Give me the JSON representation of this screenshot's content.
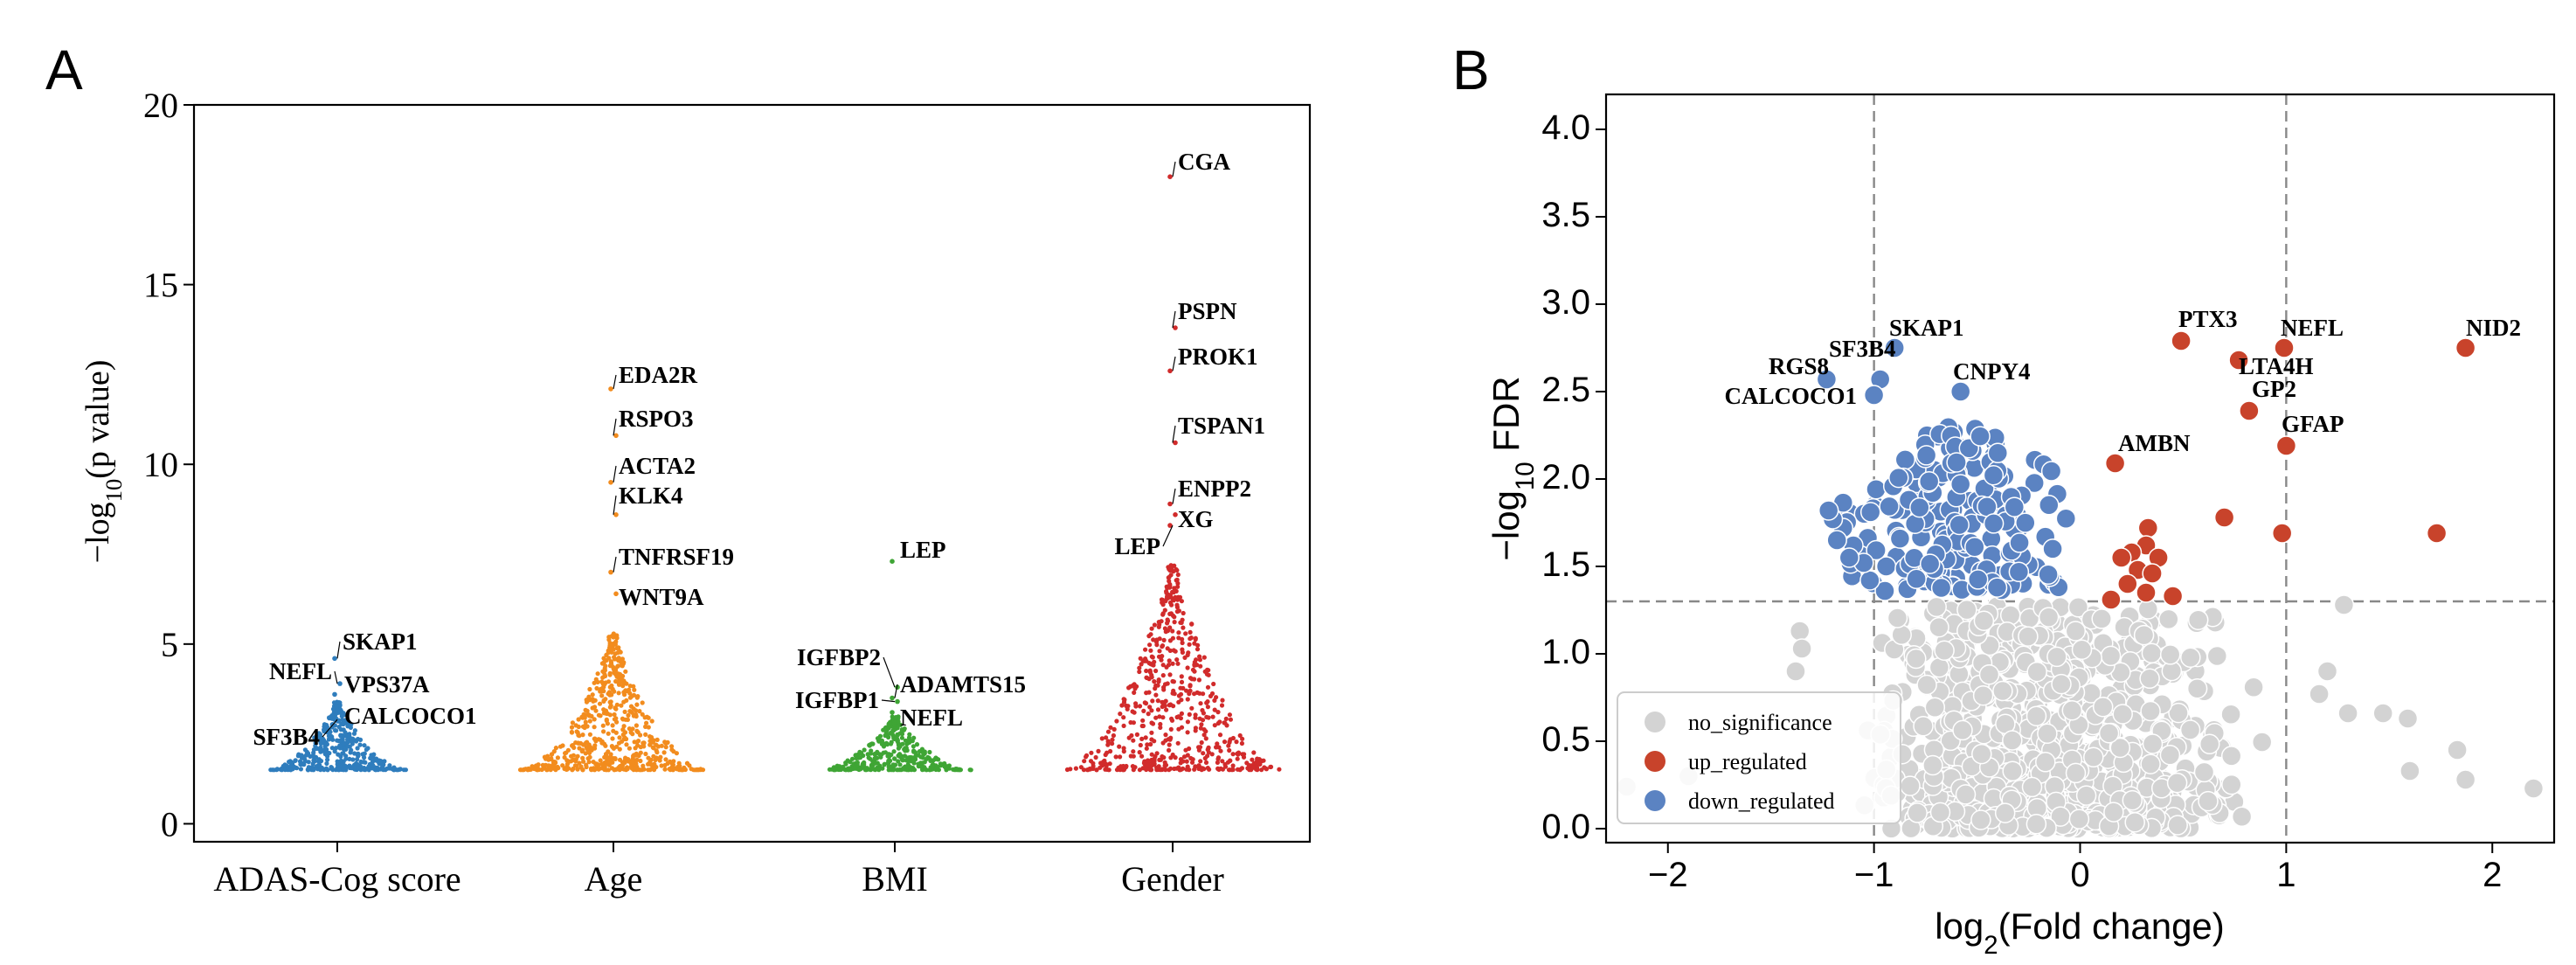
{
  "panels": {
    "a": {
      "letter": "A"
    },
    "b": {
      "letter": "B"
    }
  },
  "colors": {
    "ADAS-Cog score": "#2f7dbd",
    "Age": "#f28c1e",
    "BMI": "#3fa535",
    "Gender": "#d12b2b",
    "no_significance": "#d3d3d3",
    "up_regulated": "#c8432b",
    "down_regulated": "#5b83c2"
  },
  "chart_data": [
    {
      "type": "scatter",
      "subtype": "beeswarm",
      "ylabel": "−log10(p value)",
      "ylim": [
        -0.5,
        20
      ],
      "yticks": [
        0,
        5,
        10,
        15,
        20
      ],
      "categories": [
        "ADAS-Cog score",
        "Age",
        "BMI",
        "Gender"
      ],
      "grid": false,
      "series": [
        {
          "name": "ADAS-Cog score",
          "n_points": 420,
          "range": [
            1.5,
            3.4
          ],
          "labeled_points": [
            {
              "gene": "SKAP1",
              "value": 4.6
            },
            {
              "gene": "NEFL",
              "value": 3.9
            },
            {
              "gene": "VPS37A",
              "value": 3.6
            },
            {
              "gene": "CALCOCO1",
              "value": 3.1
            },
            {
              "gene": "SF3B4",
              "value": 2.9
            }
          ]
        },
        {
          "name": "Age",
          "n_points": 600,
          "range": [
            1.5,
            5.3
          ],
          "labeled_points": [
            {
              "gene": "EDA2R",
              "value": 12.1
            },
            {
              "gene": "RSPO3",
              "value": 10.8
            },
            {
              "gene": "ACTA2",
              "value": 9.5
            },
            {
              "gene": "KLK4",
              "value": 8.6
            },
            {
              "gene": "TNFRSF19",
              "value": 7.0
            },
            {
              "gene": "WNT9A",
              "value": 6.4
            }
          ]
        },
        {
          "name": "BMI",
          "n_points": 380,
          "range": [
            1.5,
            3.0
          ],
          "labeled_points": [
            {
              "gene": "LEP",
              "value": 7.3
            },
            {
              "gene": "IGFBP2",
              "value": 3.8
            },
            {
              "gene": "ADAMTS15",
              "value": 3.5
            },
            {
              "gene": "IGFBP1",
              "value": 3.4
            },
            {
              "gene": "NEFL",
              "value": 3.1
            }
          ]
        },
        {
          "name": "Gender",
          "n_points": 600,
          "range": [
            1.5,
            7.2
          ],
          "labeled_points": [
            {
              "gene": "CGA",
              "value": 18.0
            },
            {
              "gene": "PSPN",
              "value": 13.8
            },
            {
              "gene": "PROK1",
              "value": 12.6
            },
            {
              "gene": "TSPAN1",
              "value": 10.6
            },
            {
              "gene": "ENPP2",
              "value": 8.9
            },
            {
              "gene": "XG",
              "value": 8.6
            },
            {
              "gene": "LEP",
              "value": 8.3
            }
          ]
        }
      ]
    },
    {
      "type": "scatter",
      "subtype": "volcano",
      "xlabel_parts": [
        "log",
        "2",
        "(Fold change)"
      ],
      "ylabel_parts": [
        "−log",
        "10",
        " FDR"
      ],
      "xlim": [
        -2.3,
        2.3
      ],
      "ylim": [
        -0.08,
        4.2
      ],
      "xticks": [
        -2,
        -1,
        0,
        1,
        2
      ],
      "yticks": [
        0.0,
        0.5,
        1.0,
        1.5,
        2.0,
        2.5,
        3.0,
        3.5,
        4.0
      ],
      "thresholds": {
        "log2fc": [
          -1,
          1
        ],
        "neg_log10_fdr": 1.3
      },
      "grid": false,
      "legend": {
        "position": "lower-left",
        "entries": [
          "no_significance",
          "up_regulated",
          "down_regulated"
        ]
      },
      "labeled_points": [
        {
          "gene": "SKAP1",
          "x": -0.9,
          "y": 2.75,
          "group": "down_regulated"
        },
        {
          "gene": "SF3B4",
          "x": -0.97,
          "y": 2.57,
          "group": "down_regulated"
        },
        {
          "gene": "RGS8",
          "x": -1.23,
          "y": 2.57,
          "group": "down_regulated"
        },
        {
          "gene": "CALCOCO1",
          "x": -1.0,
          "y": 2.48,
          "group": "down_regulated"
        },
        {
          "gene": "CNPY4",
          "x": -0.58,
          "y": 2.5,
          "group": "down_regulated"
        },
        {
          "gene": "PTX3",
          "x": 0.49,
          "y": 2.79,
          "group": "up_regulated"
        },
        {
          "gene": "NEFL",
          "x": 0.99,
          "y": 2.75,
          "group": "up_regulated"
        },
        {
          "gene": "LTA4H",
          "x": 0.77,
          "y": 2.68,
          "group": "up_regulated"
        },
        {
          "gene": "GP2",
          "x": 0.82,
          "y": 2.39,
          "group": "up_regulated"
        },
        {
          "gene": "GFAP",
          "x": 1.0,
          "y": 2.19,
          "group": "up_regulated"
        },
        {
          "gene": "AMBN",
          "x": 0.17,
          "y": 2.09,
          "group": "up_regulated"
        },
        {
          "gene": "NID2",
          "x": 1.87,
          "y": 2.75,
          "group": "up_regulated"
        }
      ],
      "other_points": {
        "up_regulated": [
          [
            0.33,
            1.72
          ],
          [
            0.32,
            1.62
          ],
          [
            0.25,
            1.58
          ],
          [
            0.2,
            1.55
          ],
          [
            0.38,
            1.55
          ],
          [
            0.28,
            1.48
          ],
          [
            0.35,
            1.46
          ],
          [
            0.23,
            1.4
          ],
          [
            0.32,
            1.35
          ],
          [
            0.15,
            1.31
          ],
          [
            0.45,
            1.33
          ],
          [
            0.7,
            1.78
          ],
          [
            0.98,
            1.69
          ],
          [
            1.73,
            1.69
          ]
        ],
        "down_regulated_outliers": [
          [
            -1.02,
            1.42
          ],
          [
            -1.05,
            1.52
          ],
          [
            -1.1,
            1.62
          ],
          [
            -1.15,
            1.72
          ],
          [
            -1.2,
            1.77
          ],
          [
            -1.22,
            1.82
          ],
          [
            -1.18,
            1.65
          ],
          [
            -1.12,
            1.55
          ]
        ],
        "non_significant_outliers": [
          [
            1.28,
            1.28
          ],
          [
            1.3,
            0.66
          ],
          [
            1.47,
            0.66
          ],
          [
            1.59,
            0.63
          ],
          [
            1.83,
            0.45
          ],
          [
            1.87,
            0.28
          ],
          [
            2.2,
            0.23
          ],
          [
            1.6,
            0.33
          ],
          [
            -2.2,
            0.24
          ],
          [
            -1.36,
            1.13
          ],
          [
            -1.35,
            1.03
          ],
          [
            -1.38,
            0.9
          ],
          [
            -1.9,
            0.3
          ],
          [
            1.16,
            0.77
          ],
          [
            1.2,
            0.9
          ]
        ]
      }
    }
  ]
}
